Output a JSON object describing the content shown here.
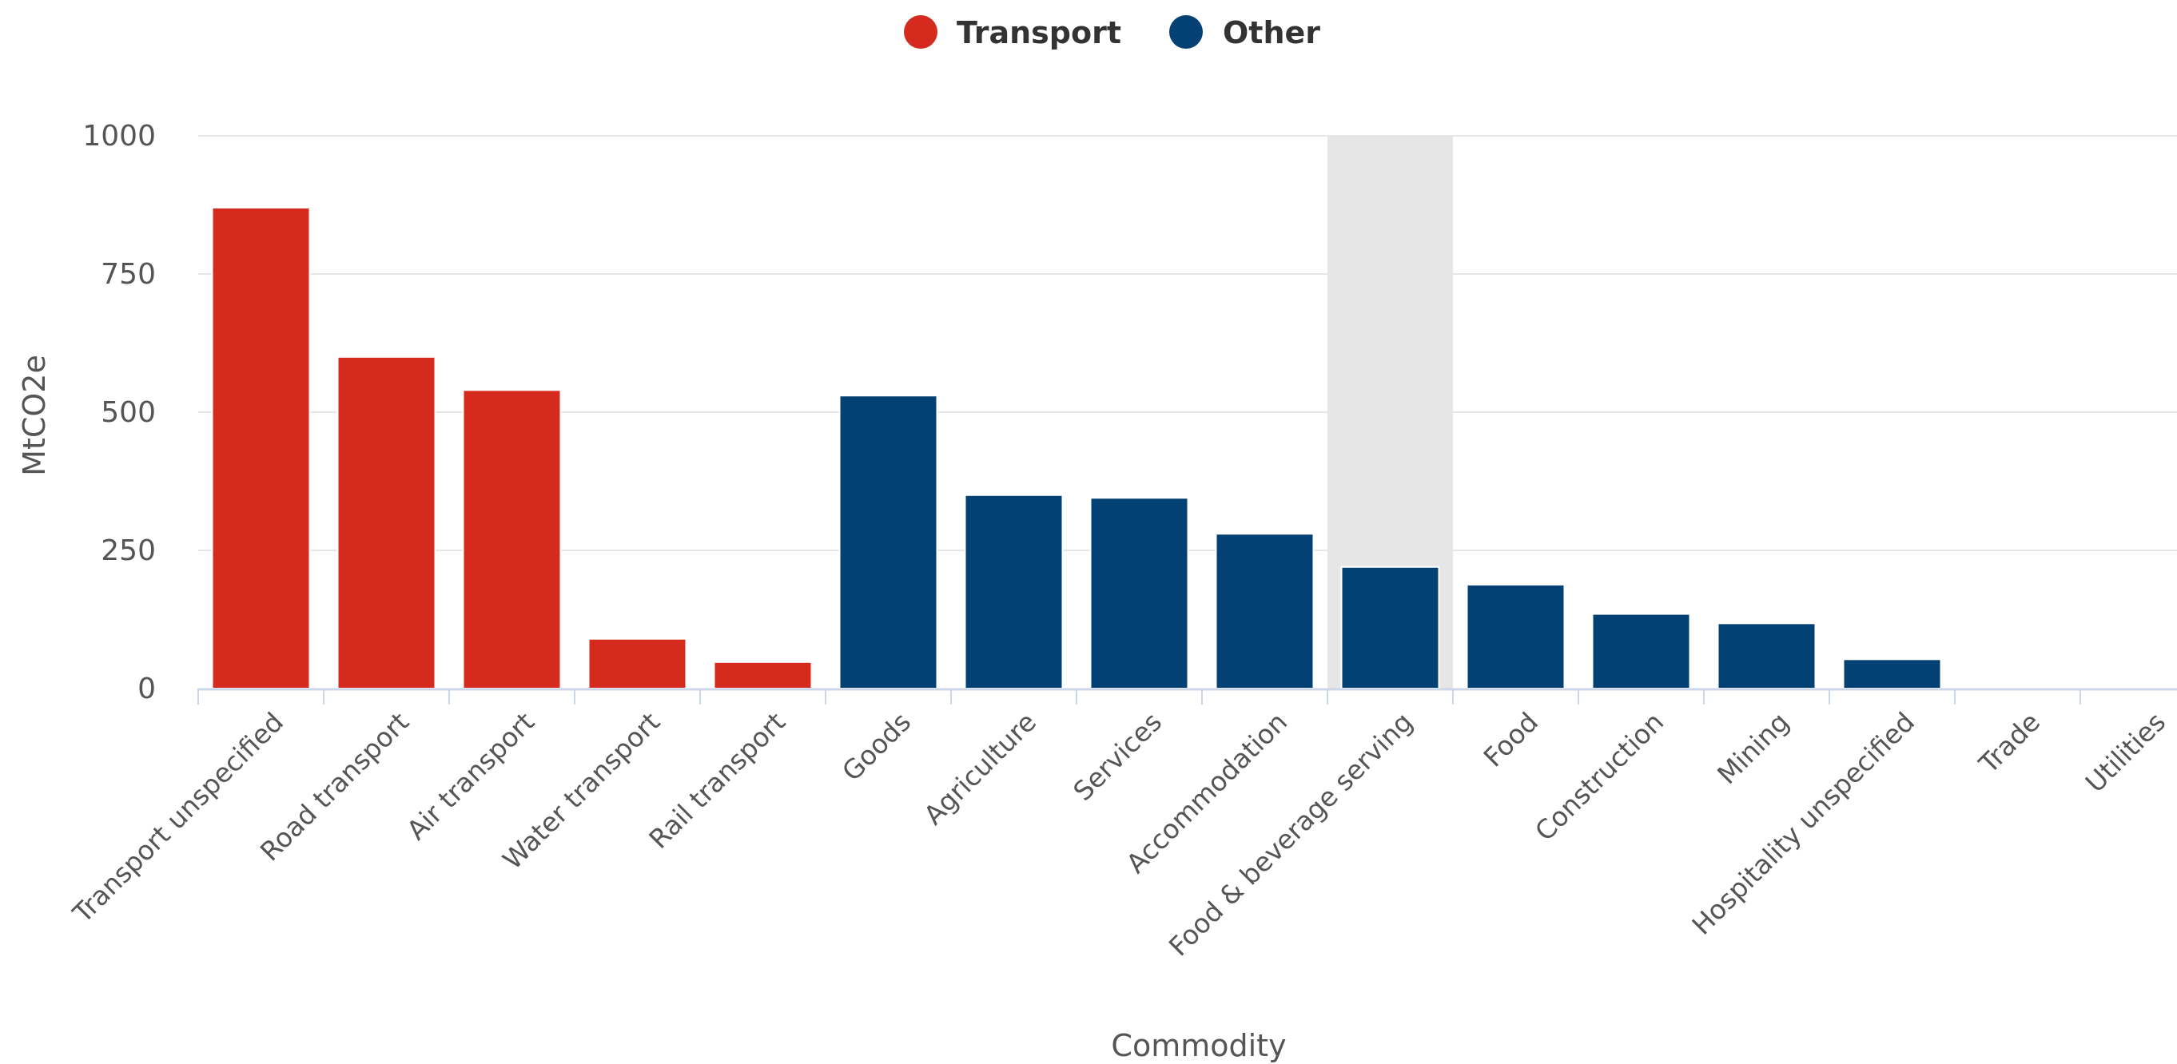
{
  "chart_data": {
    "type": "bar",
    "title": "",
    "xlabel": "Commodity",
    "ylabel": "MtCO2e",
    "ylim": [
      0,
      1000
    ],
    "yticks": [
      0,
      250,
      500,
      750,
      1000
    ],
    "grid": true,
    "legend_position": "top-center",
    "highlighted_category": "Food & beverage serving",
    "categories": [
      "Transport unspecified",
      "Road transport",
      "Air transport",
      "Water transport",
      "Rail transport",
      "Goods",
      "Agriculture",
      "Services",
      "Accommodation",
      "Food & beverage serving",
      "Food",
      "Construction",
      "Mining",
      "Hospitality unspecified",
      "Trade",
      "Utilities"
    ],
    "series": [
      {
        "name": "Transport",
        "color": "#d52b1e",
        "values": [
          870,
          600,
          540,
          90,
          48,
          null,
          null,
          null,
          null,
          null,
          null,
          null,
          null,
          null,
          null,
          null
        ]
      },
      {
        "name": "Other",
        "color": "#034073",
        "values": [
          null,
          null,
          null,
          null,
          null,
          530,
          350,
          345,
          280,
          220,
          188,
          135,
          118,
          53,
          0,
          0
        ]
      }
    ],
    "highlight_color": "#e6e6e6",
    "gridline_color": "#e6e6e6",
    "axis_color": "#ccd6eb"
  }
}
